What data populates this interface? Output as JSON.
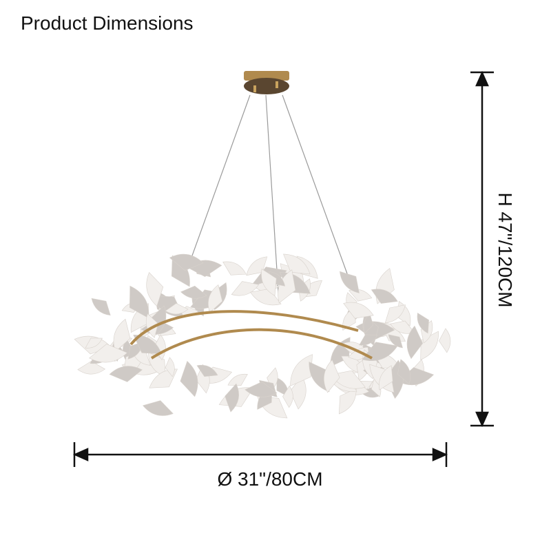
{
  "title": "Product Dimensions",
  "dimensions": {
    "height_label": "H 47\"/120CM",
    "diameter_label": "Ø 31\"/80CM"
  },
  "product": {
    "name_icon": "ginkgo-leaf-chandelier",
    "colors": {
      "frame": "#b08a4e",
      "leaf": "#f2efec",
      "leaf_shadow": "#cfcac6",
      "dimension_line": "#111111"
    }
  }
}
